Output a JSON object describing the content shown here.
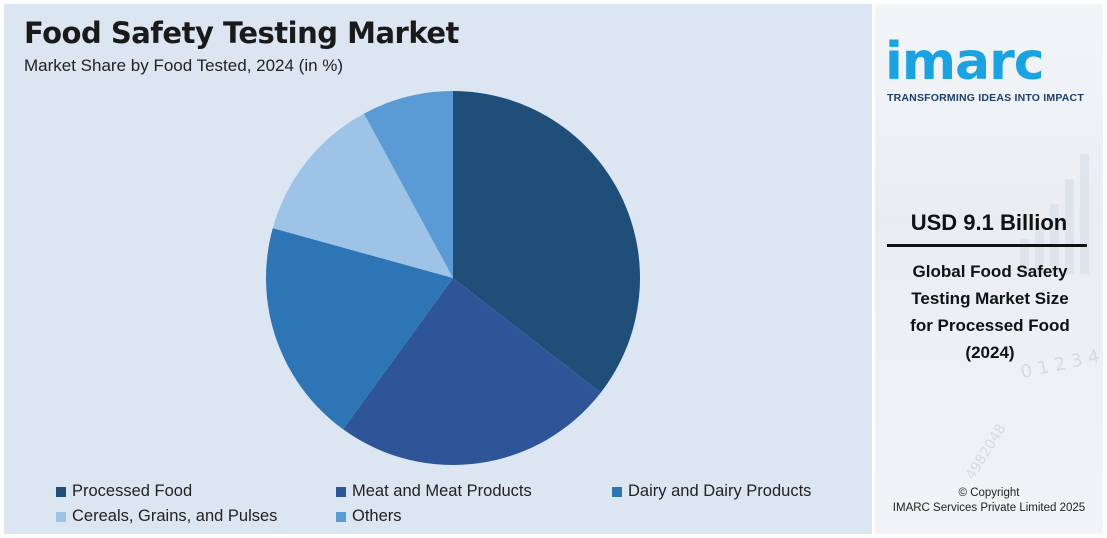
{
  "chart_data": {
    "type": "pie",
    "title": "Food Safety Testing Market",
    "subtitle": "Market Share by Food Tested, 2024 (in %)",
    "slices": [
      {
        "label": "Processed Food",
        "value": 35.5,
        "color": "#1f4e79"
      },
      {
        "label": "Meat and Meat Products",
        "value": 24.5,
        "color": "#2e5597"
      },
      {
        "label": "Dairy and Dairy Products",
        "value": 19.3,
        "color": "#2e75b6"
      },
      {
        "label": "Cereals, Grains, and Pulses",
        "value": 12.8,
        "color": "#9dc3e6"
      },
      {
        "label": "Others",
        "value": 7.9,
        "color": "#5b9bd5"
      }
    ],
    "legend_placement": "bottom",
    "start_angle_deg": 0,
    "direction": "clockwise"
  },
  "side": {
    "logo_text": "imarc",
    "logo_tagline": "TRANSFORMING IDEAS INTO IMPACT",
    "kpi_value": "USD 9.1 Billion",
    "kpi_description_lines": [
      "Global Food Safety",
      "Testing Market Size",
      "for Processed Food",
      "(2024)"
    ],
    "copyright_lines": [
      "© Copyright",
      "IMARC Services Private Limited 2025"
    ]
  },
  "colors": {
    "panel_bg": "#dce6f3",
    "logo_blue": "#1aa3e0"
  }
}
